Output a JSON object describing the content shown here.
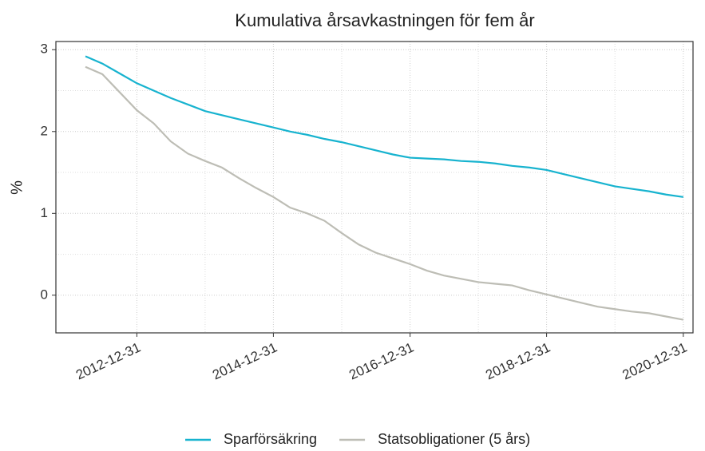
{
  "chart_data": {
    "type": "line",
    "title": "Kumulativa årsavkastningen för fem år",
    "ylabel": "%",
    "x": [
      "2012-03-31",
      "2012-06-30",
      "2012-09-30",
      "2012-12-31",
      "2013-03-31",
      "2013-06-30",
      "2013-09-30",
      "2013-12-31",
      "2014-03-31",
      "2014-06-30",
      "2014-09-30",
      "2014-12-31",
      "2015-03-31",
      "2015-06-30",
      "2015-09-30",
      "2015-12-31",
      "2016-03-31",
      "2016-06-30",
      "2016-09-30",
      "2016-12-31",
      "2017-03-31",
      "2017-06-30",
      "2017-09-30",
      "2017-12-31",
      "2018-03-31",
      "2018-06-30",
      "2018-09-30",
      "2018-12-31",
      "2019-03-31",
      "2019-06-30",
      "2019-09-30",
      "2019-12-31",
      "2020-03-31",
      "2020-06-30",
      "2020-09-30",
      "2020-12-31"
    ],
    "series": [
      {
        "name": "Sparförsäkring",
        "color": "#17b3cf",
        "values": [
          2.92,
          2.83,
          2.71,
          2.59,
          2.5,
          2.41,
          2.33,
          2.25,
          2.2,
          2.15,
          2.1,
          2.05,
          2.0,
          1.96,
          1.91,
          1.87,
          1.82,
          1.77,
          1.72,
          1.68,
          1.67,
          1.66,
          1.64,
          1.63,
          1.61,
          1.58,
          1.56,
          1.53,
          1.48,
          1.43,
          1.38,
          1.33,
          1.3,
          1.27,
          1.23,
          1.2
        ]
      },
      {
        "name": "Statsobligationer (5 års)",
        "color": "#bdbdb5",
        "values": [
          2.79,
          2.7,
          2.48,
          2.26,
          2.1,
          1.88,
          1.73,
          1.64,
          1.56,
          1.43,
          1.31,
          1.2,
          1.07,
          1.0,
          0.91,
          0.76,
          0.62,
          0.52,
          0.45,
          0.38,
          0.3,
          0.24,
          0.2,
          0.16,
          0.14,
          0.12,
          0.06,
          0.01,
          -0.04,
          -0.09,
          -0.14,
          -0.17,
          -0.2,
          -0.22,
          -0.26,
          -0.3
        ]
      }
    ],
    "xlim": [
      "2011-10-25",
      "2021-02-21"
    ],
    "xticks": [
      "2012-12-31",
      "2014-12-31",
      "2016-12-31",
      "2018-12-31",
      "2020-12-31"
    ],
    "ylim": [
      -0.46,
      3.1
    ],
    "yticks": [
      0,
      1,
      2,
      3
    ],
    "grid": true,
    "legend": "bottom"
  }
}
